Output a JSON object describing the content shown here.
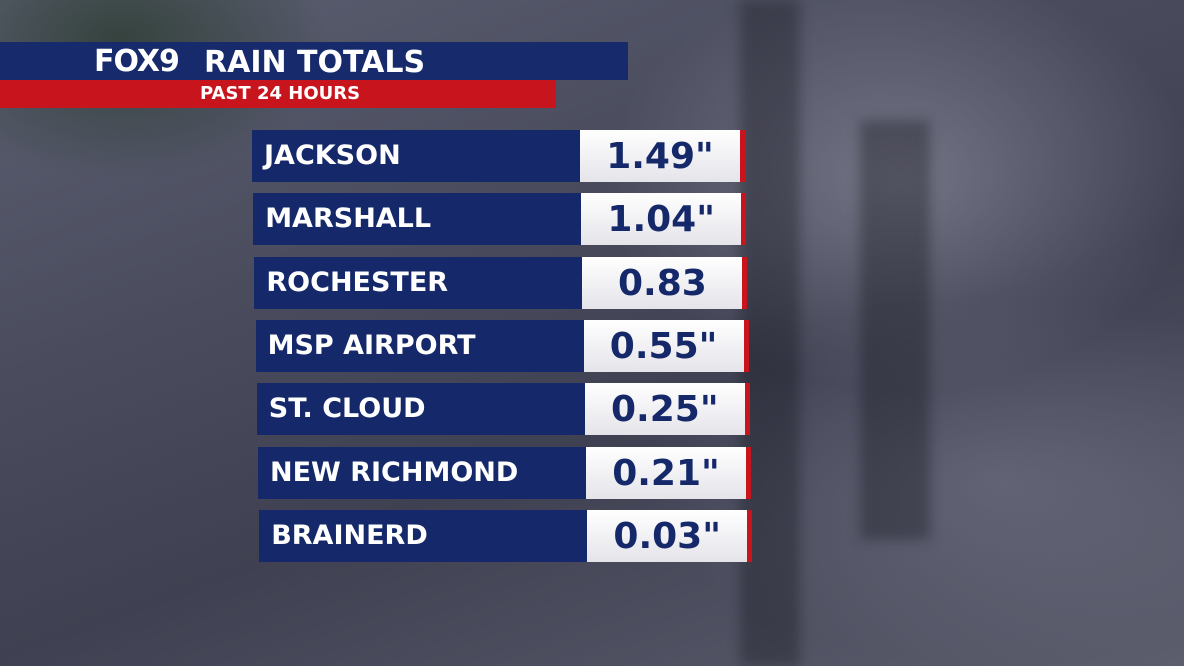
{
  "header": {
    "logo": "FOX9",
    "title": "RAIN TOTALS",
    "subtitle": "PAST 24 HOURS"
  },
  "table": {
    "rows": [
      [
        "JACKSON",
        "1.49\""
      ],
      [
        "MARSHALL",
        "1.04\""
      ],
      [
        "ROCHESTER",
        "0.83"
      ],
      [
        "MSP AIRPORT",
        "0.55\""
      ],
      [
        "ST. CLOUD",
        "0.25\""
      ],
      [
        "NEW RICHMOND",
        "0.21\""
      ],
      [
        "BRAINERD",
        "0.03\""
      ]
    ]
  }
}
